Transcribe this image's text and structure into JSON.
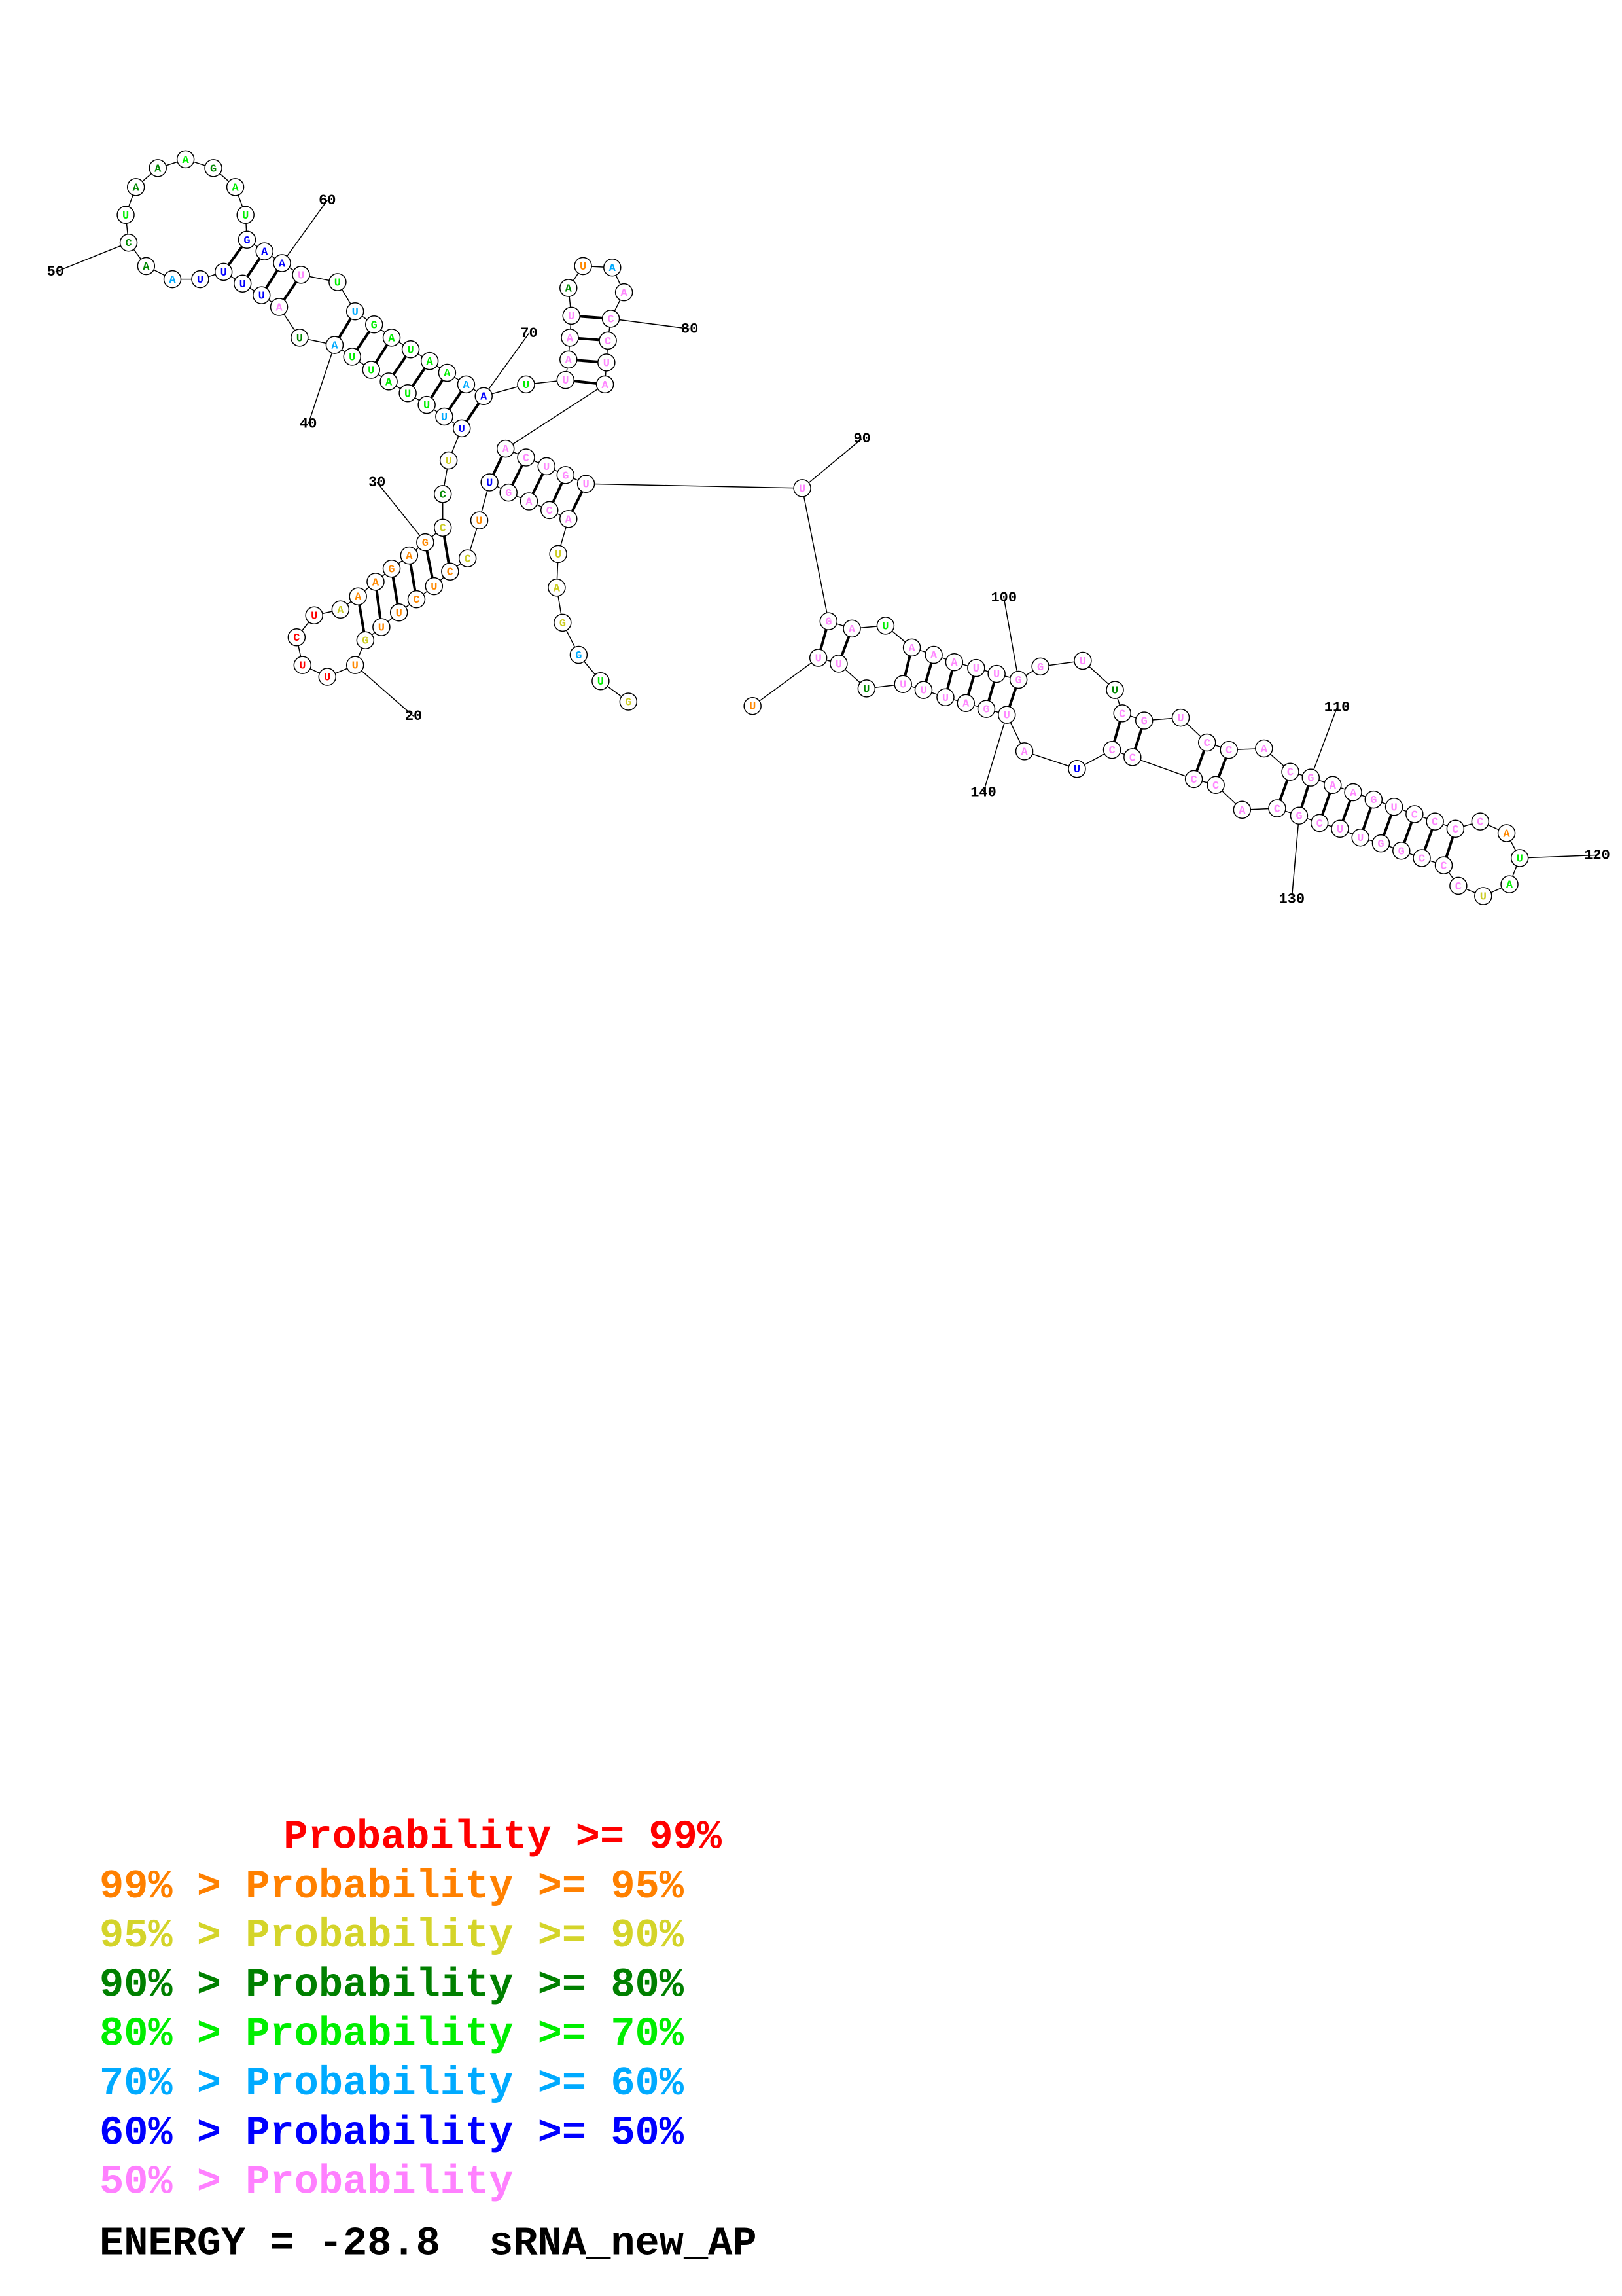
{
  "structure": {
    "bases": [
      "G",
      "U",
      "G",
      "G",
      "A",
      "U",
      "A",
      "C",
      "A",
      "G",
      "U",
      "U",
      "C",
      "C",
      "U",
      "C",
      "U",
      "U",
      "G",
      "U",
      "U",
      "U",
      "C",
      "U",
      "A",
      "A",
      "A",
      "G",
      "A",
      "G",
      "C",
      "C",
      "U",
      "U",
      "U",
      "U",
      "U",
      "A",
      "U",
      "U",
      "A",
      "U",
      "A",
      "U",
      "U",
      "U",
      "U",
      "A",
      "A",
      "C",
      "U",
      "A",
      "A",
      "A",
      "G",
      "A",
      "U",
      "G",
      "A",
      "A",
      "U",
      "U",
      "U",
      "G",
      "A",
      "U",
      "A",
      "A",
      "A",
      "A",
      "U",
      "U",
      "A",
      "A",
      "U",
      "A",
      "U",
      "A",
      "A",
      "C",
      "C",
      "U",
      "A",
      "A",
      "C",
      "U",
      "G",
      "U",
      "U",
      "G",
      "A",
      "U",
      "A",
      "A",
      "A",
      "U",
      "U",
      "G",
      "G",
      "U",
      "U",
      "C",
      "G",
      "U",
      "C",
      "C",
      "A",
      "C",
      "G",
      "A",
      "A",
      "G",
      "U",
      "C",
      "C",
      "C",
      "C",
      "A",
      "U",
      "A",
      "U",
      "C",
      "C",
      "C",
      "G",
      "G",
      "U",
      "U",
      "C",
      "G",
      "C",
      "A",
      "C",
      "C",
      "C",
      "C",
      "U",
      "A",
      "U",
      "G",
      "A",
      "U",
      "U",
      "U",
      "U",
      "U",
      "U",
      "U"
    ],
    "colors": [
      "#cc2",
      "#0e0",
      "#0af",
      "#cc2",
      "#cc2",
      "#cc2",
      "#f8f",
      "#f8f",
      "#f8f",
      "#f8f",
      "#00f",
      "#f80",
      "#cc2",
      "#f80",
      "#f80",
      "#f80",
      "#f80",
      "#f80",
      "#cc2",
      "#f80",
      "#f00",
      "#f00",
      "#f00",
      "#f00",
      "#cc2",
      "#f80",
      "#f80",
      "#f80",
      "#f80",
      "#f80",
      "#cc2",
      "#080",
      "#cc2",
      "#00f",
      "#0af",
      "#0e0",
      "#0e0",
      "#0e0",
      "#0e0",
      "#0e0",
      "#0af",
      "#080",
      "#f8f",
      "#00f",
      "#00f",
      "#00f",
      "#00f",
      "#0af",
      "#080",
      "#080",
      "#0e0",
      "#080",
      "#080",
      "#0e0",
      "#080",
      "#0e0",
      "#0e0",
      "#00f",
      "#00f",
      "#00f",
      "#f8f",
      "#0e0",
      "#0af",
      "#0e0",
      "#0e0",
      "#0e0",
      "#0e0",
      "#0e0",
      "#0af",
      "#00f",
      "#0e0",
      "#f8f",
      "#f8f",
      "#f8f",
      "#f8f",
      "#080",
      "#f80",
      "#0af",
      "#f8f",
      "#f8f",
      "#f8f",
      "#f8f",
      "#f8f",
      "#f8f",
      "#f8f",
      "#f8f",
      "#f8f",
      "#f8f",
      "#f8f",
      "#f8f",
      "#f8f",
      "#0e0",
      "#f8f",
      "#f8f",
      "#f8f",
      "#f8f",
      "#f8f",
      "#f8f",
      "#f8f",
      "#f8f",
      "#080",
      "#f8f",
      "#f8f",
      "#f8f",
      "#f8f",
      "#f8f",
      "#f8f",
      "#f8f",
      "#f8f",
      "#f8f",
      "#f8f",
      "#f8f",
      "#f8f",
      "#f8f",
      "#f8f",
      "#f8f",
      "#f8f",
      "#f80",
      "#0e0",
      "#0e0",
      "#cc2",
      "#f8f",
      "#f8f",
      "#f8f",
      "#f8f",
      "#f8f",
      "#f8f",
      "#f8f",
      "#f8f",
      "#f8f",
      "#f8f",
      "#f8f",
      "#f8f",
      "#f8f",
      "#f8f",
      "#f8f",
      "#00f",
      "#f8f",
      "#f8f",
      "#f8f",
      "#f8f",
      "#f8f",
      "#f8f",
      "#f8f",
      "#080",
      "#f8f",
      "#f8f",
      "#f80"
    ],
    "position_labels": [
      20,
      30,
      40,
      50,
      60,
      70,
      80,
      90,
      100,
      110,
      120,
      130,
      140
    ]
  },
  "legend": [
    {
      "text": "Probability >= 99%",
      "color": "#ff0000"
    },
    {
      "text": "99% > Probability >= 95%",
      "color": "#ff8000"
    },
    {
      "text": "95% > Probability >= 90%",
      "color": "#d4d42a"
    },
    {
      "text": "90% > Probability >= 80%",
      "color": "#008000"
    },
    {
      "text": "80% > Probability >= 70%",
      "color": "#00ee00"
    },
    {
      "text": "70% > Probability >= 60%",
      "color": "#00aaff"
    },
    {
      "text": "60% > Probability >= 50%",
      "color": "#0000ff"
    },
    {
      "text": "50% > Probability",
      "color": "#ff80ff"
    }
  ],
  "energy_line": "ENERGY = -28.8  sRNA_new_AP"
}
